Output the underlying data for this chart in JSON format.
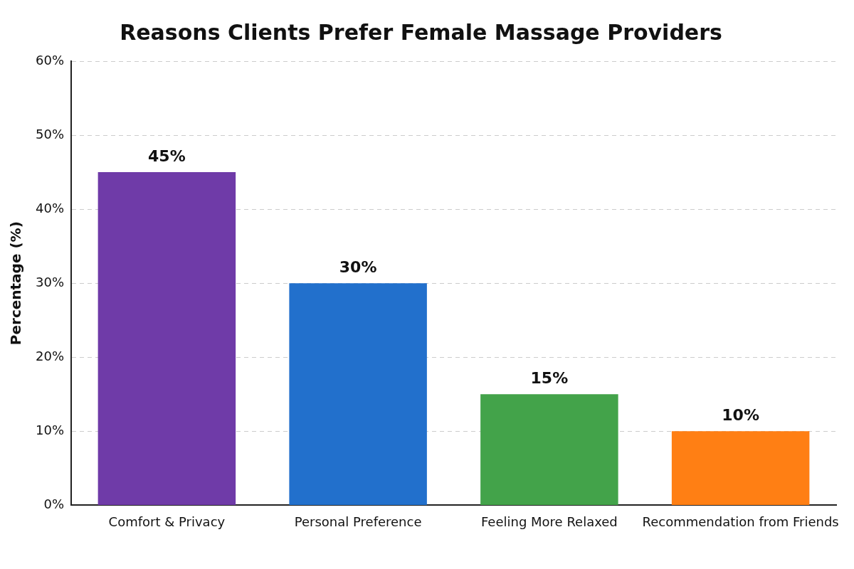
{
  "chart_data": {
    "type": "bar",
    "title": "Reasons Clients Prefer Female Massage Providers",
    "ylabel": "Percentage (%)",
    "categories": [
      "Comfort & Privacy",
      "Personal Preference",
      "Feeling More Relaxed",
      "Recommendation from Friends"
    ],
    "values": [
      45,
      30,
      15,
      10
    ],
    "colors": [
      "#6f3ba8",
      "#2270cc",
      "#43a34a",
      "#ff7f14"
    ],
    "value_labels": [
      "45%",
      "30%",
      "15%",
      "10%"
    ],
    "ylim": [
      0,
      60
    ],
    "yticks": [
      {
        "value": 0,
        "label": "0%"
      },
      {
        "value": 10,
        "label": "10%"
      },
      {
        "value": 20,
        "label": "20%"
      },
      {
        "value": 30,
        "label": "30%"
      },
      {
        "value": 40,
        "label": "40%"
      },
      {
        "value": 50,
        "label": "50%"
      },
      {
        "value": 60,
        "label": "60%"
      }
    ],
    "grid": "y",
    "legend": false
  }
}
